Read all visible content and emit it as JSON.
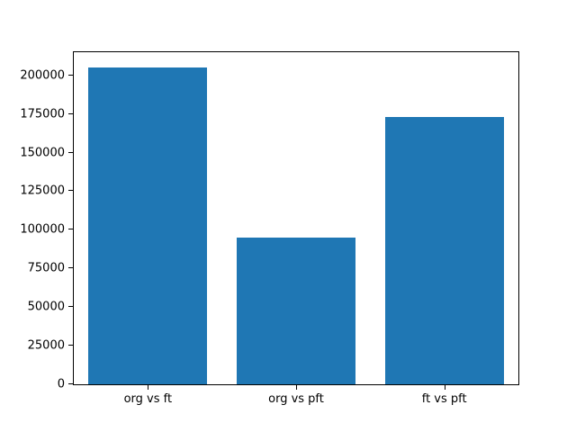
{
  "chart_data": {
    "type": "bar",
    "title": "",
    "xlabel": "",
    "ylabel": "",
    "categories": [
      "org vs ft",
      "org vs pft",
      "ft vs pft"
    ],
    "values": [
      205000,
      95000,
      173000
    ],
    "yticks": [
      0,
      25000,
      50000,
      75000,
      100000,
      125000,
      150000,
      175000,
      200000
    ],
    "ylim": [
      0,
      215000
    ],
    "bar_color": "#1f77b4",
    "bar_width_fraction": 0.8,
    "grid": false,
    "legend": "none",
    "axes_color": "#000000",
    "background_color": "#ffffff"
  }
}
